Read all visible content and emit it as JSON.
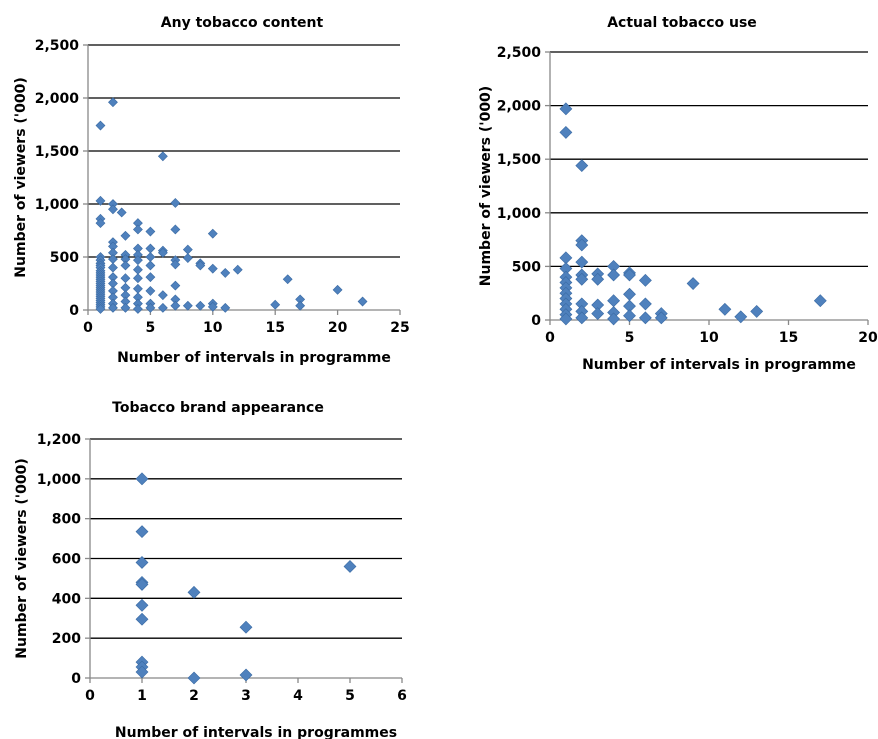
{
  "chart_data": [
    {
      "type": "scatter",
      "title": "Any tobacco content",
      "xlabel": "Number of intervals in programme",
      "ylabel": "Number of viewers ('000)",
      "xlim": [
        0,
        25
      ],
      "ylim": [
        0,
        2500
      ],
      "x_ticks": [
        0,
        5,
        10,
        15,
        20,
        25
      ],
      "y_ticks": [
        0,
        500,
        1000,
        1500,
        2000,
        2500
      ],
      "x_tick_labels": [
        "0",
        "5",
        "10",
        "15",
        "20",
        "25"
      ],
      "y_tick_labels": [
        "0",
        "500",
        "1,000",
        "1,500",
        "2,000",
        "2,500"
      ],
      "grid": "horizontal",
      "marker_color": "#4f81bd",
      "points": [
        [
          1,
          1740
        ],
        [
          1,
          1030
        ],
        [
          1,
          860
        ],
        [
          1,
          820
        ],
        [
          1,
          500
        ],
        [
          1,
          470
        ],
        [
          1,
          440
        ],
        [
          1,
          420
        ],
        [
          1,
          400
        ],
        [
          1,
          370
        ],
        [
          1,
          350
        ],
        [
          1,
          330
        ],
        [
          1,
          310
        ],
        [
          1,
          290
        ],
        [
          1,
          270
        ],
        [
          1,
          250
        ],
        [
          1,
          230
        ],
        [
          1,
          210
        ],
        [
          1,
          190
        ],
        [
          1,
          170
        ],
        [
          1,
          150
        ],
        [
          1,
          130
        ],
        [
          1,
          110
        ],
        [
          1,
          90
        ],
        [
          1,
          70
        ],
        [
          1,
          50
        ],
        [
          1,
          30
        ],
        [
          1,
          10
        ],
        [
          2,
          1960
        ],
        [
          2,
          1000
        ],
        [
          2,
          950
        ],
        [
          2,
          640
        ],
        [
          2,
          600
        ],
        [
          2,
          540
        ],
        [
          2,
          480
        ],
        [
          2,
          400
        ],
        [
          2,
          310
        ],
        [
          2,
          250
        ],
        [
          2,
          180
        ],
        [
          2,
          120
        ],
        [
          2,
          60
        ],
        [
          2,
          20
        ],
        [
          2.7,
          920
        ],
        [
          3,
          700
        ],
        [
          3,
          520
        ],
        [
          3,
          480
        ],
        [
          3,
          420
        ],
        [
          3,
          300
        ],
        [
          3,
          210
        ],
        [
          3,
          140
        ],
        [
          3,
          80
        ],
        [
          3,
          20
        ],
        [
          4,
          820
        ],
        [
          4,
          760
        ],
        [
          4,
          580
        ],
        [
          4,
          520
        ],
        [
          4,
          470
        ],
        [
          4,
          380
        ],
        [
          4,
          300
        ],
        [
          4,
          200
        ],
        [
          4,
          120
        ],
        [
          4,
          60
        ],
        [
          4,
          10
        ],
        [
          5,
          740
        ],
        [
          5,
          580
        ],
        [
          5,
          500
        ],
        [
          5,
          420
        ],
        [
          5,
          310
        ],
        [
          5,
          180
        ],
        [
          5,
          60
        ],
        [
          5,
          20
        ],
        [
          6,
          1450
        ],
        [
          6,
          560
        ],
        [
          6,
          540
        ],
        [
          6,
          140
        ],
        [
          6,
          20
        ],
        [
          7,
          1010
        ],
        [
          7,
          760
        ],
        [
          7,
          470
        ],
        [
          7,
          430
        ],
        [
          7,
          230
        ],
        [
          7,
          100
        ],
        [
          7,
          40
        ],
        [
          8,
          570
        ],
        [
          8,
          490
        ],
        [
          8,
          40
        ],
        [
          9,
          440
        ],
        [
          9,
          420
        ],
        [
          9,
          40
        ],
        [
          10,
          720
        ],
        [
          10,
          390
        ],
        [
          10,
          60
        ],
        [
          10,
          30
        ],
        [
          11,
          350
        ],
        [
          11,
          20
        ],
        [
          12,
          380
        ],
        [
          15,
          50
        ],
        [
          16,
          290
        ],
        [
          17,
          100
        ],
        [
          17,
          40
        ],
        [
          20,
          190
        ],
        [
          22,
          80
        ]
      ]
    },
    {
      "type": "scatter",
      "title": "Actual tobacco use",
      "xlabel": "Number of intervals in programme",
      "ylabel": "Number of viewers ('000)",
      "xlim": [
        0,
        20
      ],
      "ylim": [
        0,
        2500
      ],
      "x_ticks": [
        0,
        5,
        10,
        15,
        20
      ],
      "y_ticks": [
        0,
        500,
        1000,
        1500,
        2000,
        2500
      ],
      "x_tick_labels": [
        "0",
        "5",
        "10",
        "15",
        "20"
      ],
      "y_tick_labels": [
        "0",
        "500",
        "1,000",
        "1,500",
        "2,000",
        "2,500"
      ],
      "grid": "horizontal",
      "marker_color": "#4f81bd",
      "points": [
        [
          1,
          1970
        ],
        [
          1,
          1750
        ],
        [
          1,
          580
        ],
        [
          1,
          480
        ],
        [
          1,
          400
        ],
        [
          1,
          350
        ],
        [
          1,
          300
        ],
        [
          1,
          250
        ],
        [
          1,
          200
        ],
        [
          1,
          150
        ],
        [
          1,
          100
        ],
        [
          1,
          50
        ],
        [
          1,
          10
        ],
        [
          2,
          1440
        ],
        [
          2,
          740
        ],
        [
          2,
          700
        ],
        [
          2,
          540
        ],
        [
          2,
          420
        ],
        [
          2,
          380
        ],
        [
          2,
          150
        ],
        [
          2,
          80
        ],
        [
          2,
          20
        ],
        [
          3,
          430
        ],
        [
          3,
          380
        ],
        [
          3,
          140
        ],
        [
          3,
          60
        ],
        [
          4,
          500
        ],
        [
          4,
          420
        ],
        [
          4,
          180
        ],
        [
          4,
          70
        ],
        [
          4,
          10
        ],
        [
          5,
          440
        ],
        [
          5,
          420
        ],
        [
          5,
          240
        ],
        [
          5,
          130
        ],
        [
          5,
          40
        ],
        [
          6,
          370
        ],
        [
          6,
          150
        ],
        [
          6,
          20
        ],
        [
          7,
          60
        ],
        [
          7,
          20
        ],
        [
          9,
          340
        ],
        [
          11,
          100
        ],
        [
          12,
          30
        ],
        [
          13,
          80
        ],
        [
          17,
          180
        ]
      ]
    },
    {
      "type": "scatter",
      "title": "Tobacco brand appearance",
      "xlabel": "Number of intervals in programmes",
      "ylabel": "Number of viewers ('000)",
      "xlim": [
        0,
        6
      ],
      "ylim": [
        0,
        1200
      ],
      "x_ticks": [
        0,
        1,
        2,
        3,
        4,
        5,
        6
      ],
      "y_ticks": [
        0,
        200,
        400,
        600,
        800,
        1000,
        1200
      ],
      "x_tick_labels": [
        "0",
        "1",
        "2",
        "3",
        "4",
        "5",
        "6"
      ],
      "y_tick_labels": [
        "0",
        "200",
        "400",
        "600",
        "800",
        "1,000",
        "1,200"
      ],
      "grid": "horizontal",
      "marker_color": "#4f81bd",
      "points": [
        [
          1,
          1000
        ],
        [
          1,
          735
        ],
        [
          1,
          580
        ],
        [
          1,
          480
        ],
        [
          1,
          470
        ],
        [
          1,
          365
        ],
        [
          1,
          295
        ],
        [
          1,
          80
        ],
        [
          1,
          55
        ],
        [
          1,
          30
        ],
        [
          2,
          430
        ],
        [
          2,
          0
        ],
        [
          3,
          255
        ],
        [
          3,
          15
        ],
        [
          5,
          560
        ]
      ]
    }
  ]
}
